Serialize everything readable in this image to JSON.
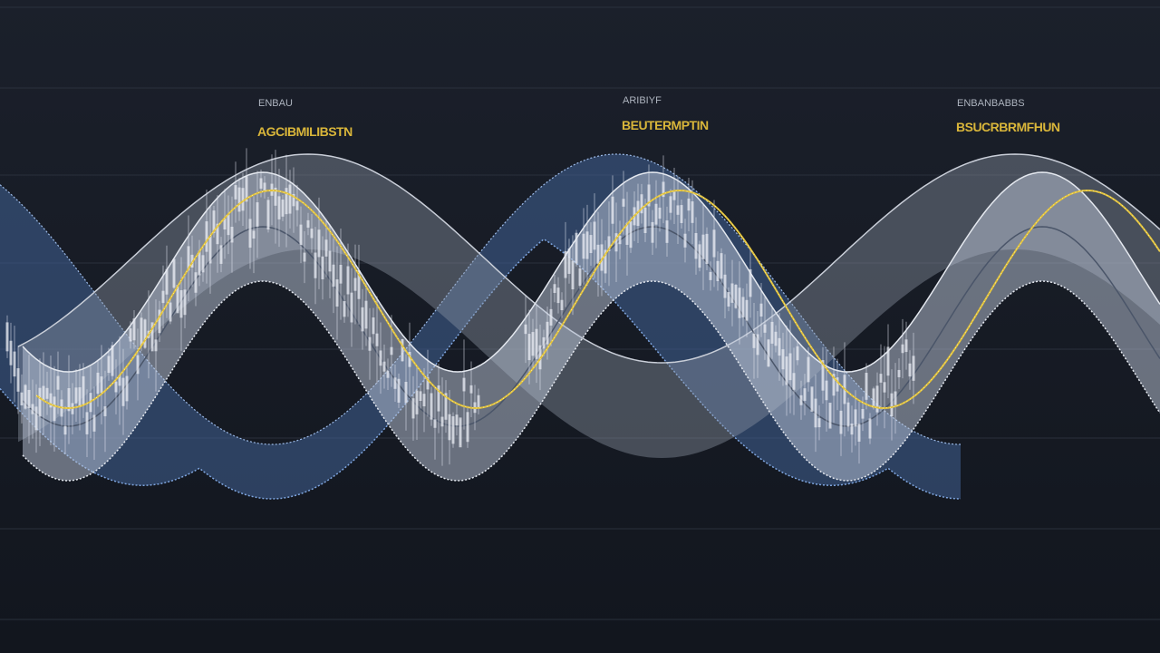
{
  "labels": [
    {
      "caption": "ENBAU",
      "title": "AGCIBMILIBSTN"
    },
    {
      "caption": "ARIBIYF",
      "title": "BEUTERMPTIN"
    },
    {
      "caption": "ENBANBABBS",
      "title": "BSUCRBRMFHUN"
    }
  ]
}
